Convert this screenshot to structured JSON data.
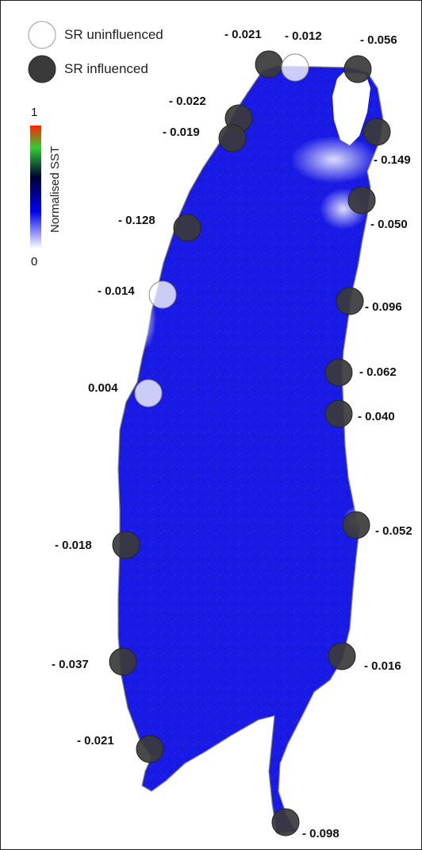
{
  "legend": {
    "uninfluenced_label": "SR uninfluenced",
    "influenced_label": "SR influenced"
  },
  "colorbar": {
    "title": "Normalised SST",
    "max_label": "1",
    "min_label": "0",
    "colors": [
      "#ff2200",
      "#33cc33",
      "#000033",
      "#0000ee",
      "#ffffff"
    ]
  },
  "colors": {
    "lake_fill": "#1a1ae6",
    "influenced_fill": "#3a3a3a",
    "uninfluenced_fill": "#ffffff",
    "outline": "#888888"
  },
  "sites": [
    {
      "label": "- 0.021",
      "type": "influenced"
    },
    {
      "label": "- 0.012",
      "type": "uninfluenced"
    },
    {
      "label": "- 0.056",
      "type": "influenced"
    },
    {
      "label": "- 0.022",
      "type": "influenced"
    },
    {
      "label": "- 0.019",
      "type": "influenced"
    },
    {
      "label": "- 0.149",
      "type": "influenced"
    },
    {
      "label": "- 0.050",
      "type": "influenced"
    },
    {
      "label": "- 0.128",
      "type": "influenced"
    },
    {
      "label": "- 0.014",
      "type": "uninfluenced"
    },
    {
      "label": "- 0.096",
      "type": "influenced"
    },
    {
      "label": "- 0.062",
      "type": "influenced"
    },
    {
      "label": "0.004",
      "type": "uninfluenced"
    },
    {
      "label": "- 0.040",
      "type": "influenced"
    },
    {
      "label": "- 0.052",
      "type": "influenced"
    },
    {
      "label": "- 0.018",
      "type": "influenced"
    },
    {
      "label": "- 0.037",
      "type": "influenced"
    },
    {
      "label": "- 0.016",
      "type": "influenced"
    },
    {
      "label": "- 0.021",
      "type": "influenced"
    },
    {
      "label": "- 0.098",
      "type": "influenced"
    }
  ]
}
